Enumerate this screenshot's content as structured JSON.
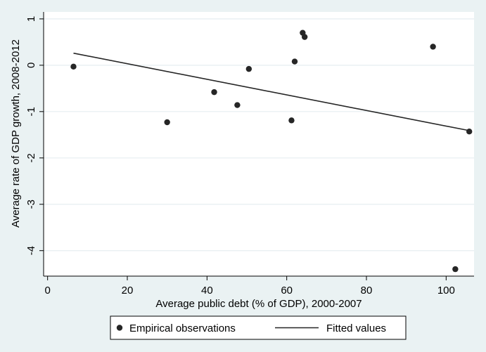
{
  "chart_data": {
    "type": "scatter",
    "title": "",
    "xlabel": "Average public debt (% of GDP), 2000-2007",
    "ylabel": "Average rate of GDP growth, 2008-2012",
    "xlim": [
      -1,
      107
    ],
    "ylim": [
      -4.55,
      1.15
    ],
    "xticks": [
      0,
      20,
      40,
      60,
      80,
      100
    ],
    "yticks": [
      1,
      0,
      -1,
      -2,
      -3,
      -4
    ],
    "xtick_labels": [
      "0",
      "20",
      "40",
      "60",
      "80",
      "100"
    ],
    "ytick_labels": [
      "1",
      "0",
      "-1",
      "-2",
      "-3",
      "-4"
    ],
    "grid": "horizontal",
    "legend_position": "bottom",
    "series": [
      {
        "name": "Empirical observations",
        "kind": "scatter",
        "color": "#262626",
        "points": [
          [
            6.5,
            -0.03
          ],
          [
            30,
            -1.23
          ],
          [
            41.8,
            -0.58
          ],
          [
            47.6,
            -0.86
          ],
          [
            50.5,
            -0.08
          ],
          [
            61.2,
            -1.19
          ],
          [
            62,
            0.08
          ],
          [
            64,
            0.7
          ],
          [
            64.5,
            0.61
          ],
          [
            96.7,
            0.4
          ],
          [
            102.3,
            -4.4
          ],
          [
            105.8,
            -1.43
          ]
        ]
      },
      {
        "name": "Fitted values",
        "kind": "line",
        "color": "#262626",
        "points": [
          [
            6.5,
            0.26
          ],
          [
            105.8,
            -1.41
          ]
        ]
      }
    ]
  }
}
